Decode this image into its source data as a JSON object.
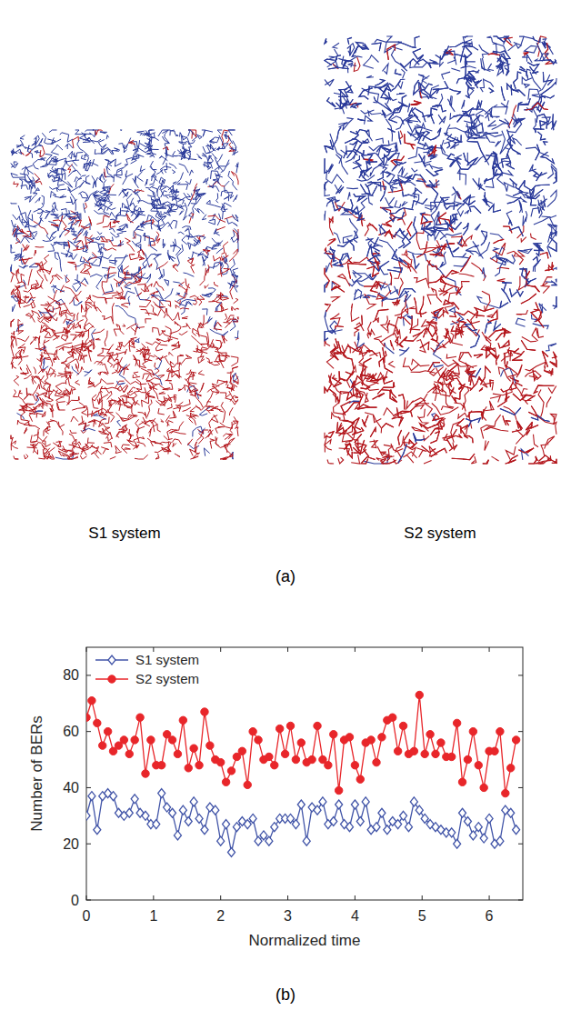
{
  "chart_data": {
    "type": "line",
    "x_label": "Normalized time",
    "y_label": "Number of BERs",
    "x": [
      0,
      0.08,
      0.16,
      0.24,
      0.32,
      0.4,
      0.48,
      0.56,
      0.64,
      0.72,
      0.8,
      0.88,
      0.96,
      1.04,
      1.12,
      1.2,
      1.28,
      1.36,
      1.44,
      1.52,
      1.6,
      1.68,
      1.76,
      1.84,
      1.92,
      2,
      2.08,
      2.16,
      2.24,
      2.32,
      2.4,
      2.48,
      2.56,
      2.64,
      2.72,
      2.8,
      2.88,
      2.96,
      3.04,
      3.12,
      3.2,
      3.28,
      3.36,
      3.44,
      3.52,
      3.6,
      3.68,
      3.76,
      3.84,
      3.92,
      4,
      4.08,
      4.16,
      4.24,
      4.32,
      4.4,
      4.48,
      4.56,
      4.64,
      4.72,
      4.8,
      4.88,
      4.96,
      5.04,
      5.12,
      5.2,
      5.28,
      5.36,
      5.44,
      5.52,
      5.6,
      5.68,
      5.76,
      5.84,
      5.92,
      6,
      6.08,
      6.16,
      6.24,
      6.32,
      6.4
    ],
    "xlim": [
      0,
      6.5
    ],
    "ylim": [
      0,
      90
    ],
    "xticks": [
      0,
      1,
      2,
      3,
      4,
      5,
      6
    ],
    "yticks": [
      0,
      20,
      40,
      60,
      80
    ],
    "legend": "upper left",
    "series": [
      {
        "name": "S1 system",
        "color": "#4255a8",
        "marker": "diamond",
        "values": [
          30,
          37,
          25,
          37,
          38,
          37,
          31,
          30,
          31,
          36,
          31,
          30,
          27,
          27,
          38,
          33,
          31,
          23,
          32,
          28,
          35,
          29,
          25,
          33,
          32,
          21,
          27,
          17,
          26,
          28,
          27,
          29,
          21,
          23,
          21,
          26,
          29,
          29,
          29,
          27,
          34,
          21,
          33,
          32,
          35,
          27,
          28,
          34,
          27,
          26,
          34,
          28,
          35,
          25,
          26,
          31,
          25,
          28,
          27,
          30,
          26,
          35,
          32,
          29,
          27,
          26,
          25,
          24,
          24,
          20,
          31,
          28,
          23,
          26,
          22,
          29,
          20,
          21,
          32,
          31,
          25
        ]
      },
      {
        "name": "S2 system",
        "color": "#e8262a",
        "marker": "circle",
        "values": [
          65,
          71,
          63,
          55,
          60,
          53,
          55,
          57,
          52,
          57,
          65,
          45,
          57,
          48,
          48,
          59,
          57,
          52,
          64,
          47,
          54,
          48,
          67,
          55,
          50,
          49,
          42,
          46,
          51,
          53,
          41,
          60,
          57,
          50,
          51,
          48,
          61,
          52,
          62,
          50,
          56,
          49,
          50,
          62,
          50,
          48,
          59,
          39,
          57,
          58,
          48,
          43,
          56,
          57,
          49,
          58,
          64,
          65,
          53,
          62,
          52,
          53,
          73,
          52,
          59,
          52,
          56,
          51,
          51,
          63,
          42,
          50,
          60,
          48,
          40,
          53,
          53,
          60,
          38,
          47,
          57
        ]
      }
    ]
  },
  "figure": {
    "panel_a": {
      "label": "(a)",
      "images": [
        {
          "caption": "S1 system"
        },
        {
          "caption": "S2 system"
        }
      ]
    },
    "panel_b": {
      "label": "(b)"
    }
  }
}
